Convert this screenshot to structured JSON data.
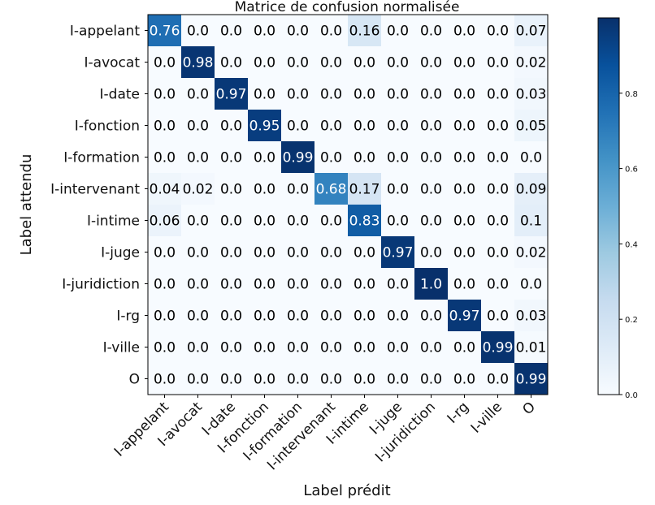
{
  "chart_data": {
    "type": "heatmap",
    "title": "Matrice de confusion normalisée",
    "xlabel": "Label prédit",
    "ylabel": "Label attendu",
    "labels": [
      "I-appelant",
      "I-avocat",
      "I-date",
      "I-fonction",
      "I-formation",
      "I-intervenant",
      "I-intime",
      "I-juge",
      "I-juridiction",
      "I-rg",
      "I-ville",
      "O"
    ],
    "matrix": [
      [
        "0.76",
        "0.0",
        "0.0",
        "0.0",
        "0.0",
        "0.0",
        "0.16",
        "0.0",
        "0.0",
        "0.0",
        "0.0",
        "0.07"
      ],
      [
        "0.0",
        "0.98",
        "0.0",
        "0.0",
        "0.0",
        "0.0",
        "0.0",
        "0.0",
        "0.0",
        "0.0",
        "0.0",
        "0.02"
      ],
      [
        "0.0",
        "0.0",
        "0.97",
        "0.0",
        "0.0",
        "0.0",
        "0.0",
        "0.0",
        "0.0",
        "0.0",
        "0.0",
        "0.03"
      ],
      [
        "0.0",
        "0.0",
        "0.0",
        "0.95",
        "0.0",
        "0.0",
        "0.0",
        "0.0",
        "0.0",
        "0.0",
        "0.0",
        "0.05"
      ],
      [
        "0.0",
        "0.0",
        "0.0",
        "0.0",
        "0.99",
        "0.0",
        "0.0",
        "0.0",
        "0.0",
        "0.0",
        "0.0",
        "0.0"
      ],
      [
        "0.04",
        "0.02",
        "0.0",
        "0.0",
        "0.0",
        "0.68",
        "0.17",
        "0.0",
        "0.0",
        "0.0",
        "0.0",
        "0.09"
      ],
      [
        "0.06",
        "0.0",
        "0.0",
        "0.0",
        "0.0",
        "0.0",
        "0.83",
        "0.0",
        "0.0",
        "0.0",
        "0.0",
        "0.1"
      ],
      [
        "0.0",
        "0.0",
        "0.0",
        "0.0",
        "0.0",
        "0.0",
        "0.0",
        "0.97",
        "0.0",
        "0.0",
        "0.0",
        "0.02"
      ],
      [
        "0.0",
        "0.0",
        "0.0",
        "0.0",
        "0.0",
        "0.0",
        "0.0",
        "0.0",
        "1.0",
        "0.0",
        "0.0",
        "0.0"
      ],
      [
        "0.0",
        "0.0",
        "0.0",
        "0.0",
        "0.0",
        "0.0",
        "0.0",
        "0.0",
        "0.0",
        "0.97",
        "0.0",
        "0.03"
      ],
      [
        "0.0",
        "0.0",
        "0.0",
        "0.0",
        "0.0",
        "0.0",
        "0.0",
        "0.0",
        "0.0",
        "0.0",
        "0.99",
        "0.01"
      ],
      [
        "0.0",
        "0.0",
        "0.0",
        "0.0",
        "0.0",
        "0.0",
        "0.0",
        "0.0",
        "0.0",
        "0.0",
        "0.0",
        "0.99"
      ]
    ],
    "colormap": "Blues",
    "color_range": [
      0.0,
      1.0
    ],
    "colorbar_ticks": [
      "0.0",
      "0.2",
      "0.4",
      "0.6",
      "0.8"
    ],
    "colorbar_tick_values": [
      0.0,
      0.2,
      0.4,
      0.6,
      0.8
    ]
  }
}
